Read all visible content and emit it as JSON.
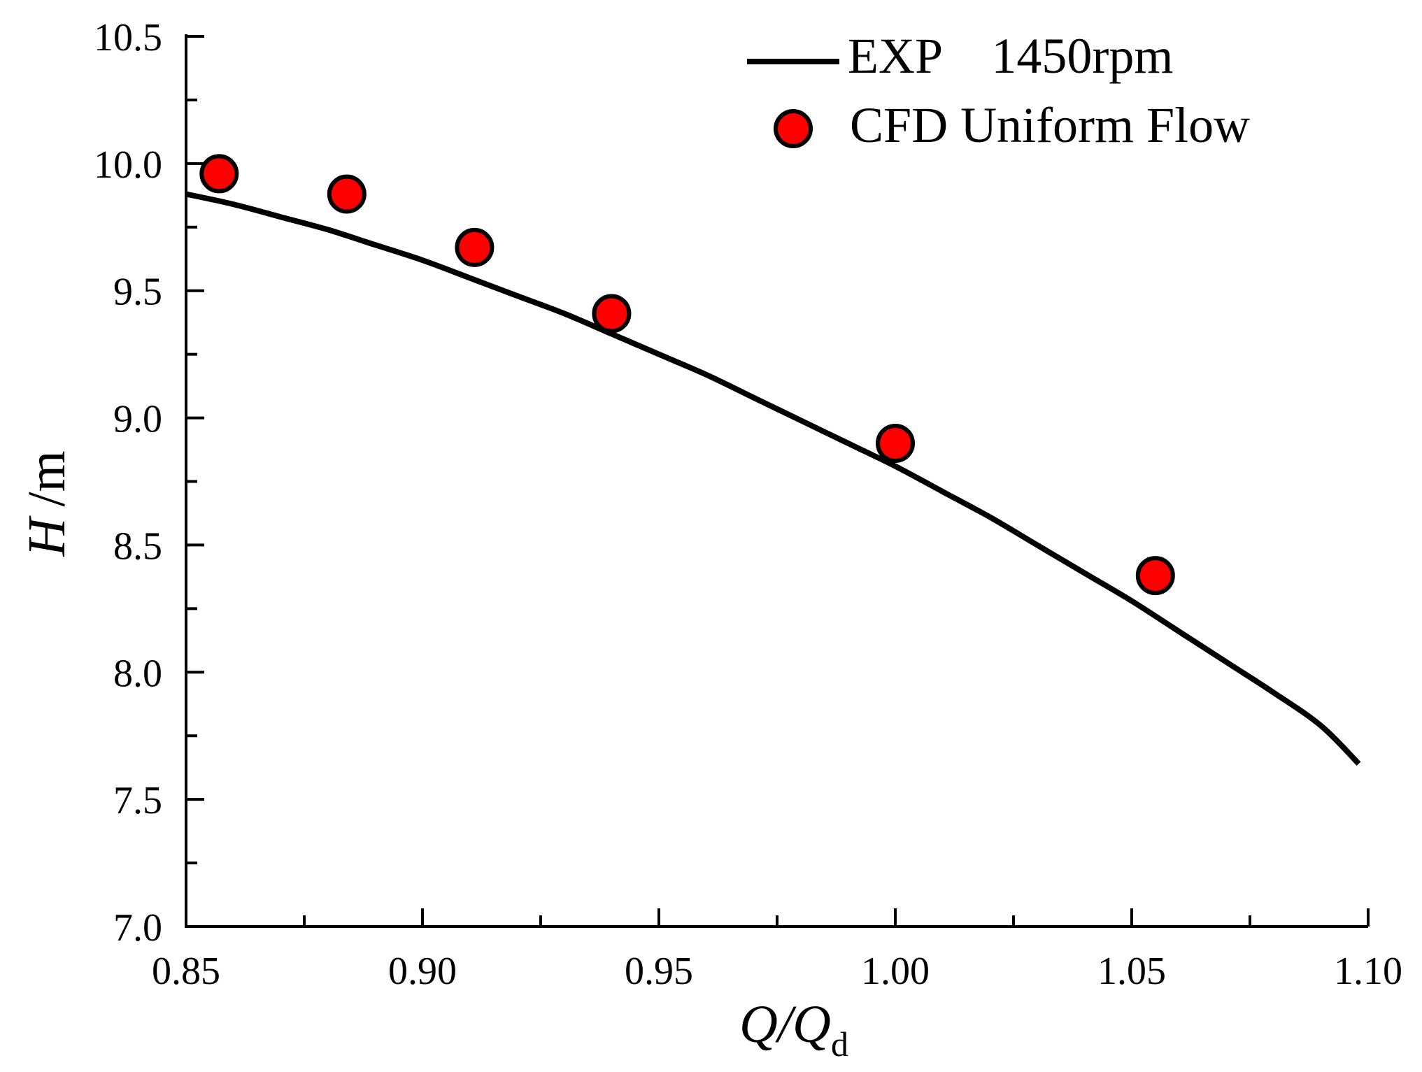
{
  "chart_data": {
    "type": "line",
    "title": "",
    "xlabel": {
      "main": "Q/Q",
      "subscript": "d"
    },
    "ylabel": {
      "italic": "H",
      "unit": "/m"
    },
    "xlim": [
      0.85,
      1.1
    ],
    "ylim": [
      7.0,
      10.5
    ],
    "x_ticks": [
      0.85,
      0.9,
      0.95,
      1.0,
      1.05,
      1.1
    ],
    "x_tick_labels": [
      "0.85",
      "0.90",
      "0.95",
      "1.00",
      "1.05",
      "1.10"
    ],
    "x_minor_ticks": [
      0.875,
      0.925,
      0.975,
      1.025,
      1.075
    ],
    "y_ticks": [
      7.0,
      7.5,
      8.0,
      8.5,
      9.0,
      9.5,
      10.0,
      10.5
    ],
    "y_tick_labels": [
      "7.0",
      "7.5",
      "8.0",
      "8.5",
      "9.0",
      "9.5",
      "10.0",
      "10.5"
    ],
    "y_minor_ticks": [
      7.25,
      7.75,
      8.25,
      8.75,
      9.25,
      9.75,
      10.25
    ],
    "grid": false,
    "legend_position": "top-right",
    "series": [
      {
        "name": "EXP    1450rpm",
        "kind": "line",
        "color": "#000000",
        "x": [
          0.85,
          0.86,
          0.87,
          0.88,
          0.89,
          0.9,
          0.91,
          0.92,
          0.93,
          0.94,
          0.95,
          0.96,
          0.97,
          0.98,
          0.99,
          1.0,
          1.01,
          1.02,
          1.03,
          1.04,
          1.05,
          1.06,
          1.07,
          1.08,
          1.09,
          1.098
        ],
        "y": [
          9.88,
          9.84,
          9.79,
          9.74,
          9.68,
          9.62,
          9.55,
          9.48,
          9.41,
          9.33,
          9.25,
          9.17,
          9.08,
          8.99,
          8.9,
          8.81,
          8.71,
          8.61,
          8.5,
          8.39,
          8.28,
          8.16,
          8.04,
          7.92,
          7.79,
          7.64
        ]
      },
      {
        "name": "CFD Uniform Flow",
        "kind": "scatter",
        "color": "#ff0000",
        "edge_color": "#000000",
        "x": [
          0.857,
          0.884,
          0.911,
          0.94,
          1.0,
          1.055
        ],
        "y": [
          9.96,
          9.88,
          9.67,
          9.41,
          8.9,
          8.38
        ]
      }
    ]
  }
}
